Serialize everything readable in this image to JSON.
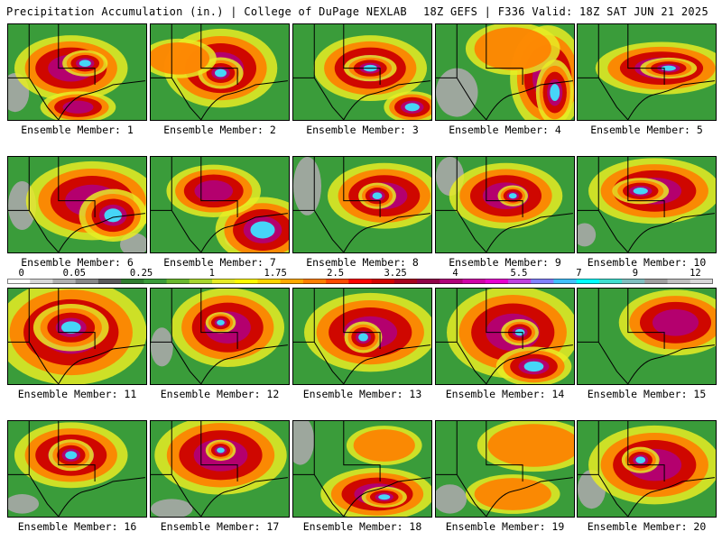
{
  "header": {
    "left_title": "Precipitation Accumulation (in.) | College of DuPage NEXLAB",
    "right_title": "18Z GEFS | F336 Valid: 18Z SAT JUN 21 2025"
  },
  "member_label_prefix": "Ensemble Member: ",
  "members": [
    {
      "id": "1",
      "label": "Ensemble Member: 1",
      "blobs": [
        [
          0.45,
          0.45,
          0.3,
          0.25,
          "heavy"
        ],
        [
          0.55,
          0.4,
          0.12,
          0.1,
          "extreme"
        ],
        [
          0.5,
          0.85,
          0.2,
          0.12,
          "heavy"
        ]
      ],
      "gray": [
        [
          0.05,
          0.7,
          0.1,
          0.2
        ]
      ]
    },
    {
      "id": "2",
      "label": "Ensemble Member: 2",
      "blobs": [
        [
          0.5,
          0.45,
          0.3,
          0.3,
          "heavy"
        ],
        [
          0.5,
          0.5,
          0.12,
          0.12,
          "extreme"
        ],
        [
          0.2,
          0.35,
          0.2,
          0.15,
          "mod"
        ]
      ],
      "gray": []
    },
    {
      "id": "3",
      "label": "Ensemble Member: 3",
      "blobs": [
        [
          0.55,
          0.45,
          0.3,
          0.25,
          "heavy"
        ],
        [
          0.55,
          0.45,
          0.14,
          0.1,
          "extreme"
        ],
        [
          0.85,
          0.85,
          0.15,
          0.12,
          "extreme"
        ]
      ],
      "gray": []
    },
    {
      "id": "4",
      "label": "Ensemble Member: 4",
      "blobs": [
        [
          0.8,
          0.55,
          0.2,
          0.4,
          "heavy"
        ],
        [
          0.85,
          0.7,
          0.1,
          0.25,
          "extreme"
        ],
        [
          0.55,
          0.25,
          0.25,
          0.2,
          "mod"
        ]
      ],
      "gray": [
        [
          0.15,
          0.7,
          0.15,
          0.25
        ]
      ]
    },
    {
      "id": "5",
      "label": "Ensemble Member: 5",
      "blobs": [
        [
          0.6,
          0.45,
          0.35,
          0.2,
          "heavy"
        ],
        [
          0.65,
          0.45,
          0.15,
          0.08,
          "extreme"
        ]
      ],
      "gray": []
    },
    {
      "id": "6",
      "label": "Ensemble Member: 6",
      "blobs": [
        [
          0.6,
          0.45,
          0.35,
          0.3,
          "heavy"
        ],
        [
          0.75,
          0.6,
          0.18,
          0.2,
          "extreme"
        ]
      ],
      "gray": [
        [
          0.1,
          0.5,
          0.1,
          0.25
        ],
        [
          0.9,
          0.9,
          0.1,
          0.12
        ]
      ]
    },
    {
      "id": "7",
      "label": "Ensemble Member: 7",
      "blobs": [
        [
          0.8,
          0.75,
          0.25,
          0.25,
          "extreme"
        ],
        [
          0.45,
          0.35,
          0.25,
          0.2,
          "heavy"
        ]
      ],
      "gray": [
        [
          0.65,
          0.85,
          0.12,
          0.1
        ]
      ]
    },
    {
      "id": "8",
      "label": "Ensemble Member: 8",
      "blobs": [
        [
          0.65,
          0.4,
          0.3,
          0.25,
          "heavy"
        ],
        [
          0.6,
          0.4,
          0.1,
          0.1,
          "extreme"
        ]
      ],
      "gray": [
        [
          0.1,
          0.3,
          0.1,
          0.3
        ]
      ]
    },
    {
      "id": "9",
      "label": "Ensemble Member: 9",
      "blobs": [
        [
          0.5,
          0.4,
          0.3,
          0.25,
          "heavy"
        ],
        [
          0.55,
          0.4,
          0.08,
          0.08,
          "extreme"
        ]
      ],
      "gray": [
        [
          0.1,
          0.2,
          0.1,
          0.2
        ]
      ]
    },
    {
      "id": "10",
      "label": "Ensemble Member: 10",
      "blobs": [
        [
          0.55,
          0.35,
          0.35,
          0.25,
          "heavy"
        ],
        [
          0.45,
          0.35,
          0.15,
          0.1,
          "extreme"
        ]
      ],
      "gray": [
        [
          0.05,
          0.8,
          0.08,
          0.12
        ]
      ]
    },
    {
      "id": "11",
      "label": "Ensemble Member: 11",
      "blobs": [
        [
          0.45,
          0.45,
          0.4,
          0.4,
          "heavy"
        ],
        [
          0.45,
          0.4,
          0.2,
          0.18,
          "extreme"
        ]
      ],
      "gray": [
        [
          0.4,
          0.35,
          0.1,
          0.08
        ]
      ]
    },
    {
      "id": "12",
      "label": "Ensemble Member: 12",
      "blobs": [
        [
          0.55,
          0.4,
          0.3,
          0.3,
          "heavy"
        ],
        [
          0.5,
          0.35,
          0.08,
          0.08,
          "extreme"
        ]
      ],
      "gray": [
        [
          0.08,
          0.6,
          0.08,
          0.2
        ]
      ]
    },
    {
      "id": "13",
      "label": "Ensemble Member: 13",
      "blobs": [
        [
          0.55,
          0.45,
          0.35,
          0.3,
          "heavy"
        ],
        [
          0.5,
          0.5,
          0.1,
          0.12,
          "extreme"
        ]
      ],
      "gray": []
    },
    {
      "id": "14",
      "label": "Ensemble Member: 14",
      "blobs": [
        [
          0.55,
          0.45,
          0.35,
          0.35,
          "heavy"
        ],
        [
          0.6,
          0.45,
          0.1,
          0.1,
          "extreme"
        ],
        [
          0.7,
          0.8,
          0.2,
          0.15,
          "extreme"
        ]
      ],
      "gray": []
    },
    {
      "id": "15",
      "label": "Ensemble Member: 15",
      "blobs": [
        [
          0.7,
          0.35,
          0.3,
          0.25,
          "heavy"
        ]
      ],
      "gray": []
    },
    {
      "id": "16",
      "label": "Ensemble Member: 16",
      "blobs": [
        [
          0.45,
          0.35,
          0.3,
          0.25,
          "heavy"
        ],
        [
          0.45,
          0.35,
          0.12,
          0.12,
          "extreme"
        ]
      ],
      "gray": [
        [
          0.1,
          0.85,
          0.12,
          0.1
        ]
      ]
    },
    {
      "id": "17",
      "label": "Ensemble Member: 17",
      "blobs": [
        [
          0.5,
          0.35,
          0.35,
          0.3,
          "heavy"
        ],
        [
          0.5,
          0.3,
          0.08,
          0.08,
          "extreme"
        ]
      ],
      "gray": [
        [
          0.15,
          0.9,
          0.15,
          0.1
        ]
      ]
    },
    {
      "id": "18",
      "label": "Ensemble Member: 18",
      "blobs": [
        [
          0.6,
          0.75,
          0.3,
          0.2,
          "heavy"
        ],
        [
          0.65,
          0.78,
          0.12,
          0.08,
          "extreme"
        ],
        [
          0.65,
          0.25,
          0.2,
          0.15,
          "mod"
        ]
      ],
      "gray": [
        [
          0.05,
          0.2,
          0.1,
          0.25
        ]
      ]
    },
    {
      "id": "19",
      "label": "Ensemble Member: 19",
      "blobs": [
        [
          0.7,
          0.25,
          0.3,
          0.2,
          "mod"
        ],
        [
          0.55,
          0.75,
          0.25,
          0.15,
          "mod"
        ]
      ],
      "gray": [
        [
          0.1,
          0.8,
          0.12,
          0.15
        ]
      ]
    },
    {
      "id": "20",
      "label": "Ensemble Member: 20",
      "blobs": [
        [
          0.55,
          0.45,
          0.35,
          0.3,
          "heavy"
        ],
        [
          0.45,
          0.4,
          0.1,
          0.1,
          "extreme"
        ]
      ],
      "gray": [
        [
          0.1,
          0.7,
          0.1,
          0.2
        ]
      ]
    }
  ],
  "legend": {
    "ticks": [
      {
        "label": "0",
        "pos": 0.02
      },
      {
        "label": "0.05",
        "pos": 0.095
      },
      {
        "label": "0.25",
        "pos": 0.19
      },
      {
        "label": "1",
        "pos": 0.29
      },
      {
        "label": "1.75",
        "pos": 0.38
      },
      {
        "label": "2.5",
        "pos": 0.465
      },
      {
        "label": "3.25",
        "pos": 0.55
      },
      {
        "label": "4",
        "pos": 0.635
      },
      {
        "label": "5.5",
        "pos": 0.725
      },
      {
        "label": "7",
        "pos": 0.81
      },
      {
        "label": "9",
        "pos": 0.89
      },
      {
        "label": "12",
        "pos": 0.975
      }
    ],
    "colors": [
      "#ffffff",
      "#d8d8d8",
      "#b0b0b0",
      "#888888",
      "#5a5a5a",
      "#2e7d2e",
      "#3a9c3a",
      "#6ab82e",
      "#a8d62e",
      "#e8ec24",
      "#fffa00",
      "#ffd400",
      "#ffaa00",
      "#ff7f00",
      "#ff4a00",
      "#ff0000",
      "#d40000",
      "#a80020",
      "#900048",
      "#b0007a",
      "#d000a8",
      "#e800d0",
      "#c040e0",
      "#8080ff",
      "#40c0ff",
      "#00ffff",
      "#40e0d0",
      "#80c0c0",
      "#a0a0a0",
      "#c0c0c0",
      "#d8d8d8"
    ]
  },
  "palette": {
    "ground": "#3a9c3a",
    "light": "#e8ec24",
    "mod": "#ff7f00",
    "heavy": "#cc0000",
    "heavy2": "#b0007a",
    "extreme": "#40e0ff",
    "gray": "#a8a8a8",
    "border": "#000000"
  }
}
